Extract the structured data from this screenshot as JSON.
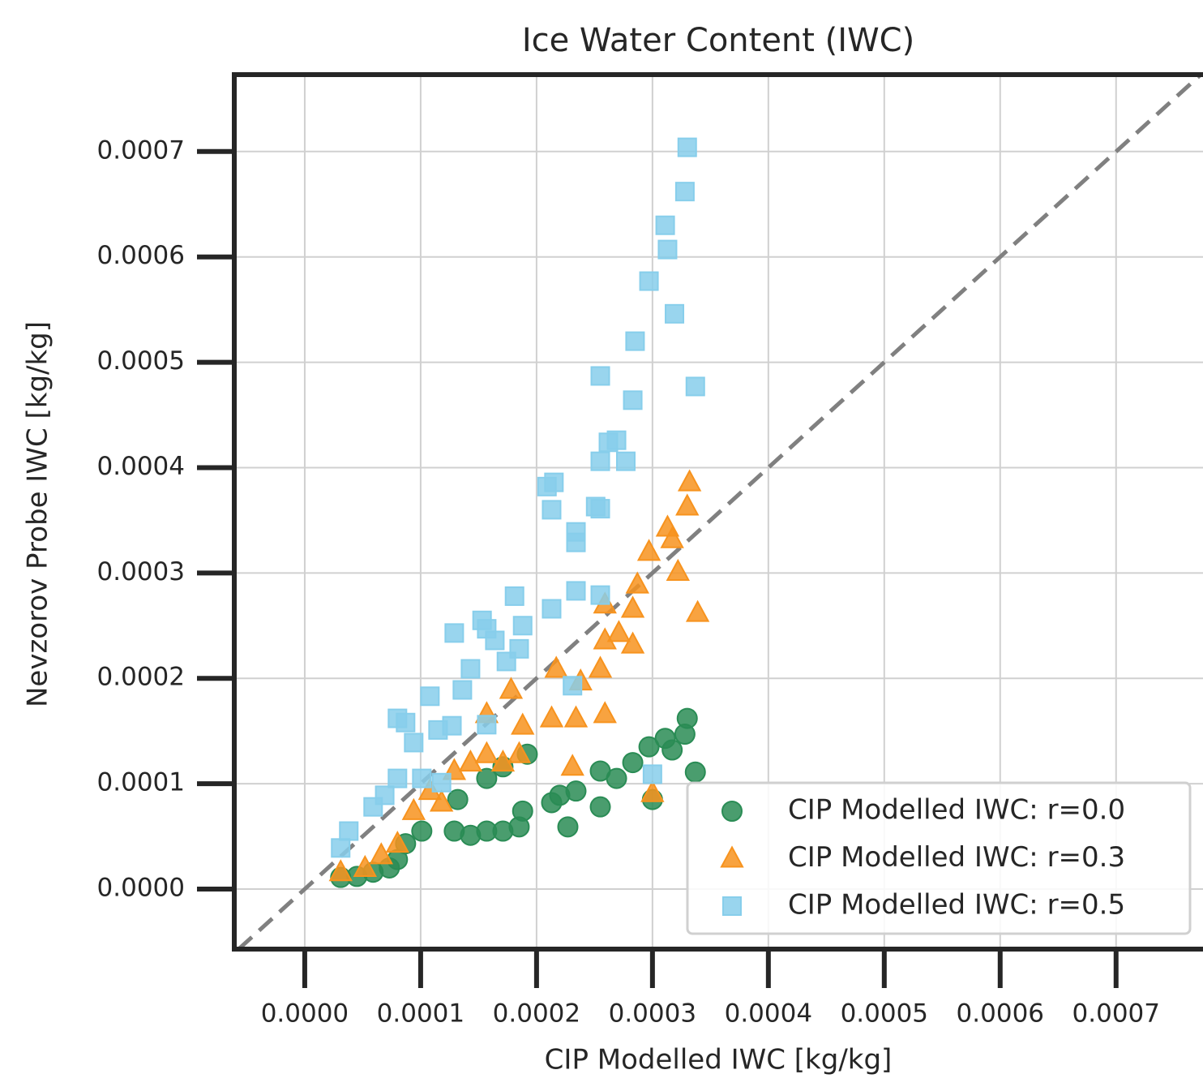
{
  "chart_data": {
    "type": "scatter",
    "title": "Ice Water Content (IWC)",
    "x_label": "CIP Modelled IWC [kg/kg]",
    "y_label": "Nevzorov Probe IWC [kg/kg]",
    "xlim": [
      -6.08e-05,
      0.000775
    ],
    "ylim": [
      -5.7e-05,
      0.000773
    ],
    "xticks": [
      {
        "value": 0,
        "label": "0.0000"
      },
      {
        "value": 0.0001,
        "label": "0.0001"
      },
      {
        "value": 0.0002,
        "label": "0.0002"
      },
      {
        "value": 0.0003,
        "label": "0.0003"
      },
      {
        "value": 0.0004,
        "label": "0.0004"
      },
      {
        "value": 0.0005,
        "label": "0.0005"
      },
      {
        "value": 0.0006,
        "label": "0.0006"
      },
      {
        "value": 0.0007,
        "label": "0.0007"
      }
    ],
    "yticks": [
      {
        "value": 0,
        "label": "0.0000"
      },
      {
        "value": 0.0001,
        "label": "0.0001"
      },
      {
        "value": 0.0002,
        "label": "0.0002"
      },
      {
        "value": 0.0003,
        "label": "0.0003"
      },
      {
        "value": 0.0004,
        "label": "0.0004"
      },
      {
        "value": 0.0005,
        "label": "0.0005"
      },
      {
        "value": 0.0006,
        "label": "0.0006"
      },
      {
        "value": 0.0007,
        "label": "0.0007"
      }
    ],
    "grid": true,
    "legend": "lower right",
    "series": [
      {
        "name": "CIP Modelled IWC: r=0.0",
        "color": "#2a8c55",
        "marker": "circle",
        "x": [
          3.1e-05,
          4.5e-05,
          5.9e-05,
          7.3e-05,
          8e-05,
          8.7e-05,
          0.000101,
          0.000129,
          0.000143,
          0.000157,
          0.000171,
          0.000185,
          0.000188,
          0.000132,
          0.000157,
          0.000171,
          0.000192,
          0.000213,
          0.00022,
          0.000227,
          0.000234,
          0.000255,
          0.000255,
          0.000269,
          0.000283,
          0.000297,
          0.0003,
          0.000311,
          0.000317,
          0.000328,
          0.00033,
          0.000337
        ],
        "values": [
          1.1e-05,
          1.2e-05,
          1.6e-05,
          2e-05,
          2.8e-05,
          4.3e-05,
          5.5e-05,
          5.5e-05,
          5.1e-05,
          5.5e-05,
          5.5e-05,
          5.9e-05,
          7.4e-05,
          8.5e-05,
          0.000105,
          0.000116,
          0.000128,
          8.2e-05,
          8.9e-05,
          5.9e-05,
          9.3e-05,
          7.8e-05,
          0.000112,
          0.000105,
          0.00012,
          0.000135,
          8.5e-05,
          0.000143,
          0.000132,
          0.000147,
          0.000162,
          0.000111
        ]
      },
      {
        "name": "CIP Modelled IWC: r=0.3",
        "color": "#f7931e",
        "marker": "triangle",
        "x": [
          3.1e-05,
          5.2e-05,
          6.6e-05,
          8e-05,
          9.4e-05,
          0.000108,
          0.000118,
          0.000129,
          0.000143,
          0.000157,
          0.000171,
          0.000185,
          0.000188,
          0.000157,
          0.000178,
          0.000213,
          0.000234,
          0.000231,
          0.000217,
          0.000238,
          0.000255,
          0.000259,
          0.000259,
          0.000271,
          0.000283,
          0.000259,
          0.000283,
          0.000287,
          0.000297,
          0.000313,
          0.000317,
          0.000322,
          0.00033,
          0.000332,
          0.000339,
          0.0003
        ],
        "values": [
          1.6e-05,
          2e-05,
          3.2e-05,
          4.3e-05,
          7.4e-05,
          9.3e-05,
          8.2e-05,
          0.000112,
          0.00012,
          0.000128,
          0.00012,
          0.000128,
          0.000155,
          0.000166,
          0.000189,
          0.000162,
          0.000162,
          0.000116,
          0.000209,
          0.000197,
          0.000209,
          0.000166,
          0.000236,
          0.000243,
          0.000232,
          0.00027,
          0.000266,
          0.000289,
          0.00032,
          0.000343,
          0.000332,
          0.000301,
          0.000363,
          0.000386,
          0.000262,
          9.1e-05
        ]
      },
      {
        "name": "CIP Modelled IWC: r=0.5",
        "color": "#87ceeb",
        "marker": "square",
        "x": [
          3.1e-05,
          3.8e-05,
          5.9e-05,
          6.9e-05,
          8e-05,
          0.000101,
          0.000118,
          0.000115,
          8e-05,
          8.7e-05,
          9.4e-05,
          0.000108,
          0.000127,
          0.000136,
          0.000143,
          0.000129,
          0.000153,
          0.000157,
          0.000164,
          0.000174,
          0.000185,
          0.000188,
          0.000181,
          0.000213,
          0.000234,
          0.000231,
          0.000255,
          0.000234,
          0.000234,
          0.000213,
          0.000209,
          0.000215,
          0.000251,
          0.000255,
          0.000255,
          0.000262,
          0.000269,
          0.000277,
          0.000283,
          0.000255,
          0.000285,
          0.000319,
          0.000297,
          0.000313,
          0.000311,
          0.000328,
          0.00033,
          0.000337,
          0.0003,
          0.000157
        ],
        "values": [
          3.9e-05,
          5.5e-05,
          7.8e-05,
          8.9e-05,
          0.000105,
          0.000105,
          0.000101,
          0.000151,
          0.000162,
          0.000158,
          0.000139,
          0.000183,
          0.000155,
          0.000189,
          0.000209,
          0.000243,
          0.000255,
          0.000247,
          0.000236,
          0.000216,
          0.000228,
          0.00025,
          0.000278,
          0.000266,
          0.000283,
          0.000193,
          0.000279,
          0.000339,
          0.000329,
          0.00036,
          0.000382,
          0.000386,
          0.000363,
          0.000361,
          0.000406,
          0.000424,
          0.000426,
          0.000406,
          0.000464,
          0.000487,
          0.00052,
          0.000546,
          0.000577,
          0.000607,
          0.00063,
          0.000662,
          0.000704,
          0.000477,
          0.000109,
          0.000156
        ]
      }
    ]
  }
}
